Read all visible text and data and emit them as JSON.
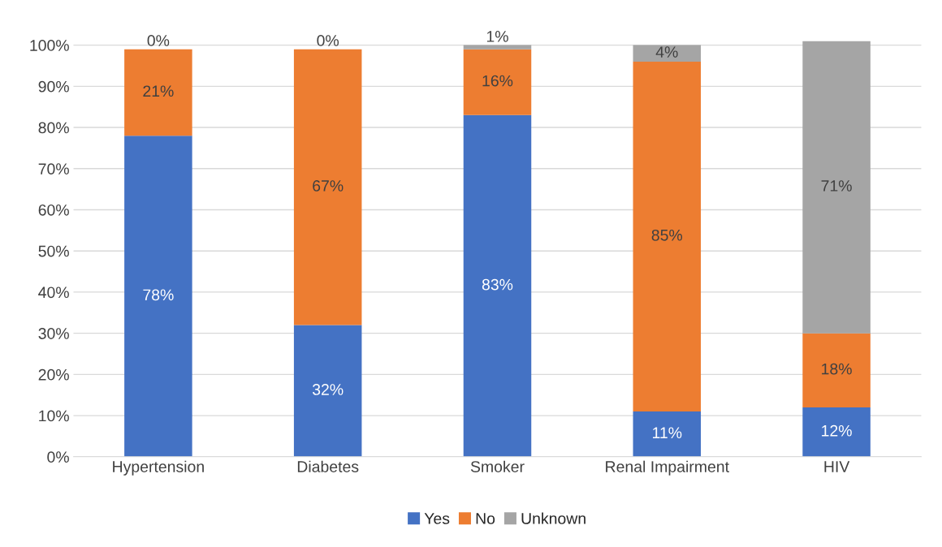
{
  "chart_data": {
    "type": "bar",
    "stacked": true,
    "categories": [
      "Hypertension",
      "Diabetes",
      "Smoker",
      "Renal Impairment",
      "HIV"
    ],
    "series": [
      {
        "name": "Yes",
        "color": "#4472c4",
        "values": [
          78,
          32,
          83,
          11,
          12
        ],
        "value_labels": [
          "78%",
          "32%",
          "83%",
          "11%",
          "12%"
        ]
      },
      {
        "name": "No",
        "color": "#ed7d31",
        "values": [
          21,
          67,
          16,
          85,
          18
        ],
        "value_labels": [
          "21%",
          "67%",
          "16%",
          "85%",
          "18%"
        ]
      },
      {
        "name": "Unknown",
        "color": "#a5a5a5",
        "values": [
          0,
          0,
          1,
          4,
          71
        ],
        "value_labels": [
          "0%",
          "0%",
          "1%",
          "4%",
          "71%"
        ]
      }
    ],
    "ylim": [
      0,
      101
    ],
    "yticks": [
      {
        "value": 0,
        "label": "0%"
      },
      {
        "value": 10,
        "label": "10%"
      },
      {
        "value": 20,
        "label": "20%"
      },
      {
        "value": 30,
        "label": "30%"
      },
      {
        "value": 40,
        "label": "40%"
      },
      {
        "value": 50,
        "label": "50%"
      },
      {
        "value": 60,
        "label": "60%"
      },
      {
        "value": 70,
        "label": "70%"
      },
      {
        "value": 80,
        "label": "80%"
      },
      {
        "value": 90,
        "label": "90%"
      },
      {
        "value": 100,
        "label": "100%"
      }
    ],
    "grid": "y",
    "legend": "bottom"
  }
}
